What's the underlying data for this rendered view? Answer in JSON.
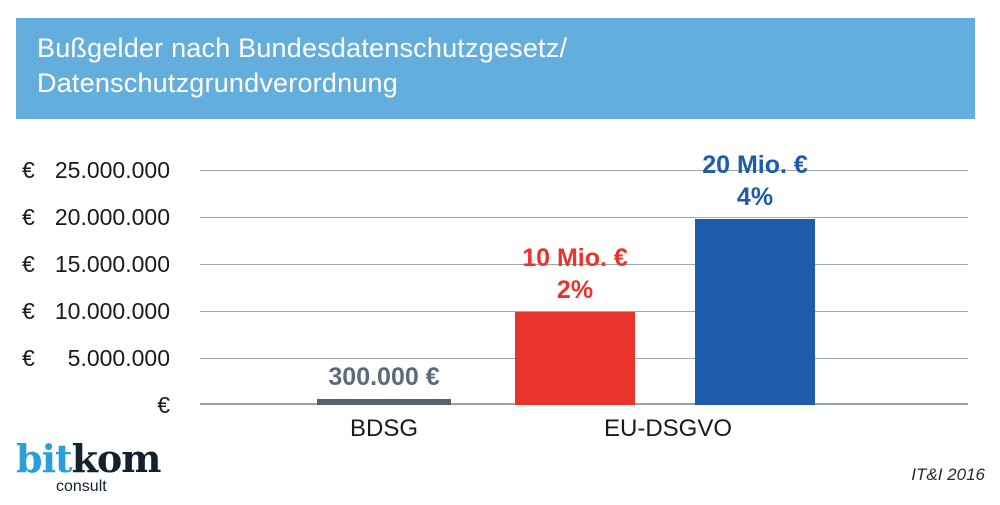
{
  "banner": {
    "title_line1": "Bußgelder nach Bundesdatenschutzgesetz/",
    "title_line2": "Datenschutzgrundverordnung",
    "bg_color": "#63aedd",
    "text_color": "#ffffff"
  },
  "chart_data": {
    "type": "bar",
    "title": "Bußgelder nach Bundesdatenschutzgesetz/Datenschutzgrundverordnung",
    "xlabel": "",
    "ylabel": "",
    "ylim": [
      0,
      25000000
    ],
    "ytick_step": 5000000,
    "grid": true,
    "legend": "none",
    "yticks": [
      {
        "currency": "€",
        "value_text": "25.000.000"
      },
      {
        "currency": "€",
        "value_text": "20.000.000"
      },
      {
        "currency": "€",
        "value_text": "15.000.000"
      },
      {
        "currency": "€",
        "value_text": "10.000.000"
      },
      {
        "currency": "€",
        "value_text": "5.000.000"
      },
      {
        "currency": "",
        "value_text": "€"
      }
    ],
    "categories": [
      "BDSG",
      "EU-DSGVO"
    ],
    "bars": [
      {
        "category": "BDSG",
        "value": 300000,
        "value_label": "300.000 €",
        "percent_label": "",
        "color": "#57616d",
        "label_color": "#5c6b7a"
      },
      {
        "category": "EU-DSGVO",
        "value": 10000000,
        "value_label": "10 Mio. €",
        "percent_label": "2%",
        "color": "#e8342c",
        "label_color": "#e8342c"
      },
      {
        "category": "EU-DSGVO",
        "value": 20000000,
        "value_label": "20 Mio. €",
        "percent_label": "4%",
        "color": "#1d5cab",
        "label_color": "#1d5cab"
      }
    ],
    "x_axis_labels": [
      "BDSG",
      "EU-DSGVO"
    ]
  },
  "footer": {
    "logo": {
      "part1": "bit",
      "part2": "kom",
      "subtext": "consult",
      "part1_color": "#2b9fd9",
      "part2_color": "#15222e"
    },
    "source": "IT&I 2016"
  }
}
